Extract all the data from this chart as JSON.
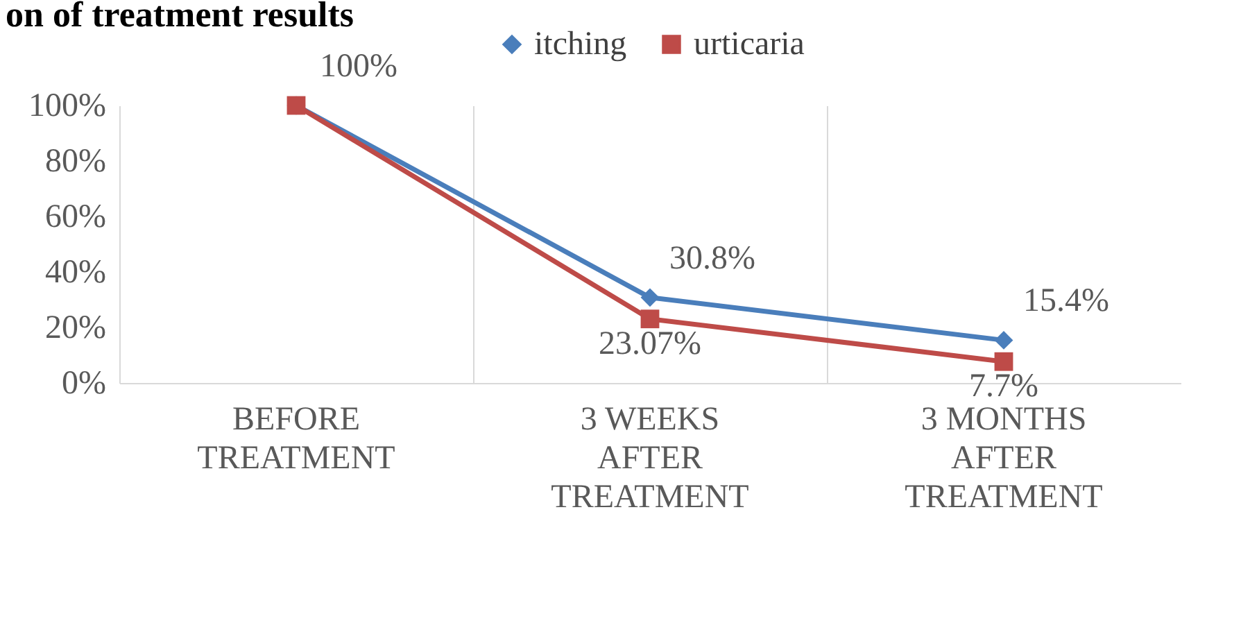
{
  "chart_data": {
    "type": "line",
    "title": "on of treatment results",
    "categories": [
      "BEFORE TREATMENT",
      "3 WEEKS AFTER TREATMENT",
      "3 MONTHS AFTER TREATMENT"
    ],
    "series": [
      {
        "name": "itching",
        "color": "#4a7ebb",
        "marker": "diamond",
        "values": [
          100,
          30.8,
          15.4
        ],
        "value_labels": [
          "100%",
          "30.8%",
          "15.4%"
        ]
      },
      {
        "name": "urticaria",
        "color": "#be4b48",
        "marker": "square",
        "values": [
          100,
          23.07,
          7.7
        ],
        "value_labels": [
          null,
          "23.07%",
          "7.7%"
        ]
      }
    ],
    "ylim": [
      0,
      100
    ],
    "yticks": [
      {
        "value": 0,
        "label": "0%"
      },
      {
        "value": 20,
        "label": "20%"
      },
      {
        "value": 40,
        "label": "40%"
      },
      {
        "value": 60,
        "label": "60%"
      },
      {
        "value": 80,
        "label": "80%"
      },
      {
        "value": 100,
        "label": "100%"
      }
    ],
    "grid": "x",
    "legend": "top",
    "line_style": "solid"
  }
}
